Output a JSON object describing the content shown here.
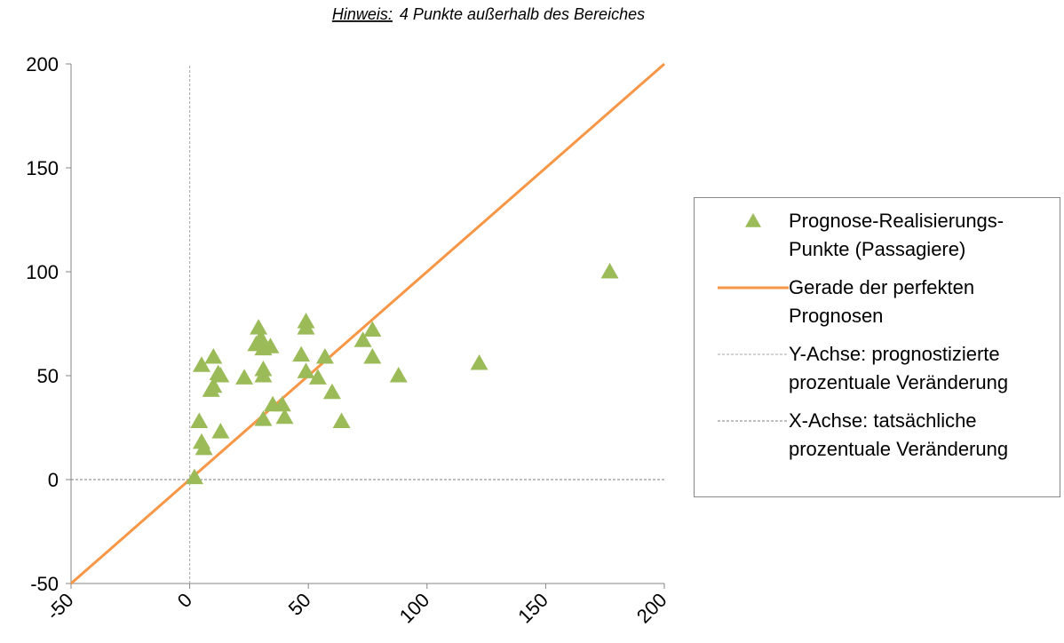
{
  "chart_data": {
    "type": "scatter",
    "note_label": "Hinweis:",
    "note_text": "4 Punkte außerhalb des Bereiches",
    "xlim": [
      -50,
      200
    ],
    "ylim": [
      -50,
      200
    ],
    "xticks": [
      -50,
      0,
      50,
      100,
      150,
      200
    ],
    "yticks": [
      -50,
      0,
      50,
      100,
      150,
      200
    ],
    "series": [
      {
        "name": "Prognose-Realisierungs-Punkte (Passagiere)",
        "style": "marker",
        "color": "#9bbb59",
        "x": [
          2,
          5,
          4,
          5,
          6,
          10,
          9,
          10,
          12,
          13,
          13,
          23,
          29,
          28,
          30,
          31,
          31,
          31,
          31,
          34,
          35,
          39,
          40,
          49,
          49,
          47,
          49,
          54,
          57,
          60,
          64,
          73,
          77,
          77,
          88,
          122,
          177
        ],
        "values": [
          1,
          55,
          28,
          18,
          15,
          59,
          43,
          45,
          51,
          50,
          23,
          49,
          73,
          65,
          68,
          63,
          53,
          50,
          29,
          64,
          36,
          36,
          30,
          76,
          73,
          60,
          52,
          49,
          59,
          42,
          28,
          67,
          72,
          59,
          50,
          56,
          100
        ]
      },
      {
        "name": "Gerade der perfekten Prognosen",
        "style": "solid",
        "color": "#f79646",
        "x": [
          -50,
          200
        ],
        "values": [
          -50,
          200
        ]
      },
      {
        "name": "Y-Achse:  prognostizierte prozentuale Veränderung",
        "style": "dashed",
        "color": "#a6a6a6",
        "x": [
          0,
          0
        ],
        "values": [
          -50,
          200
        ]
      },
      {
        "name": "X-Achse:  tatsächliche prozentuale Veränderung",
        "style": "dashed",
        "color": "#7f7f7f",
        "x": [
          -50,
          200
        ],
        "values": [
          0,
          0
        ]
      }
    ]
  }
}
